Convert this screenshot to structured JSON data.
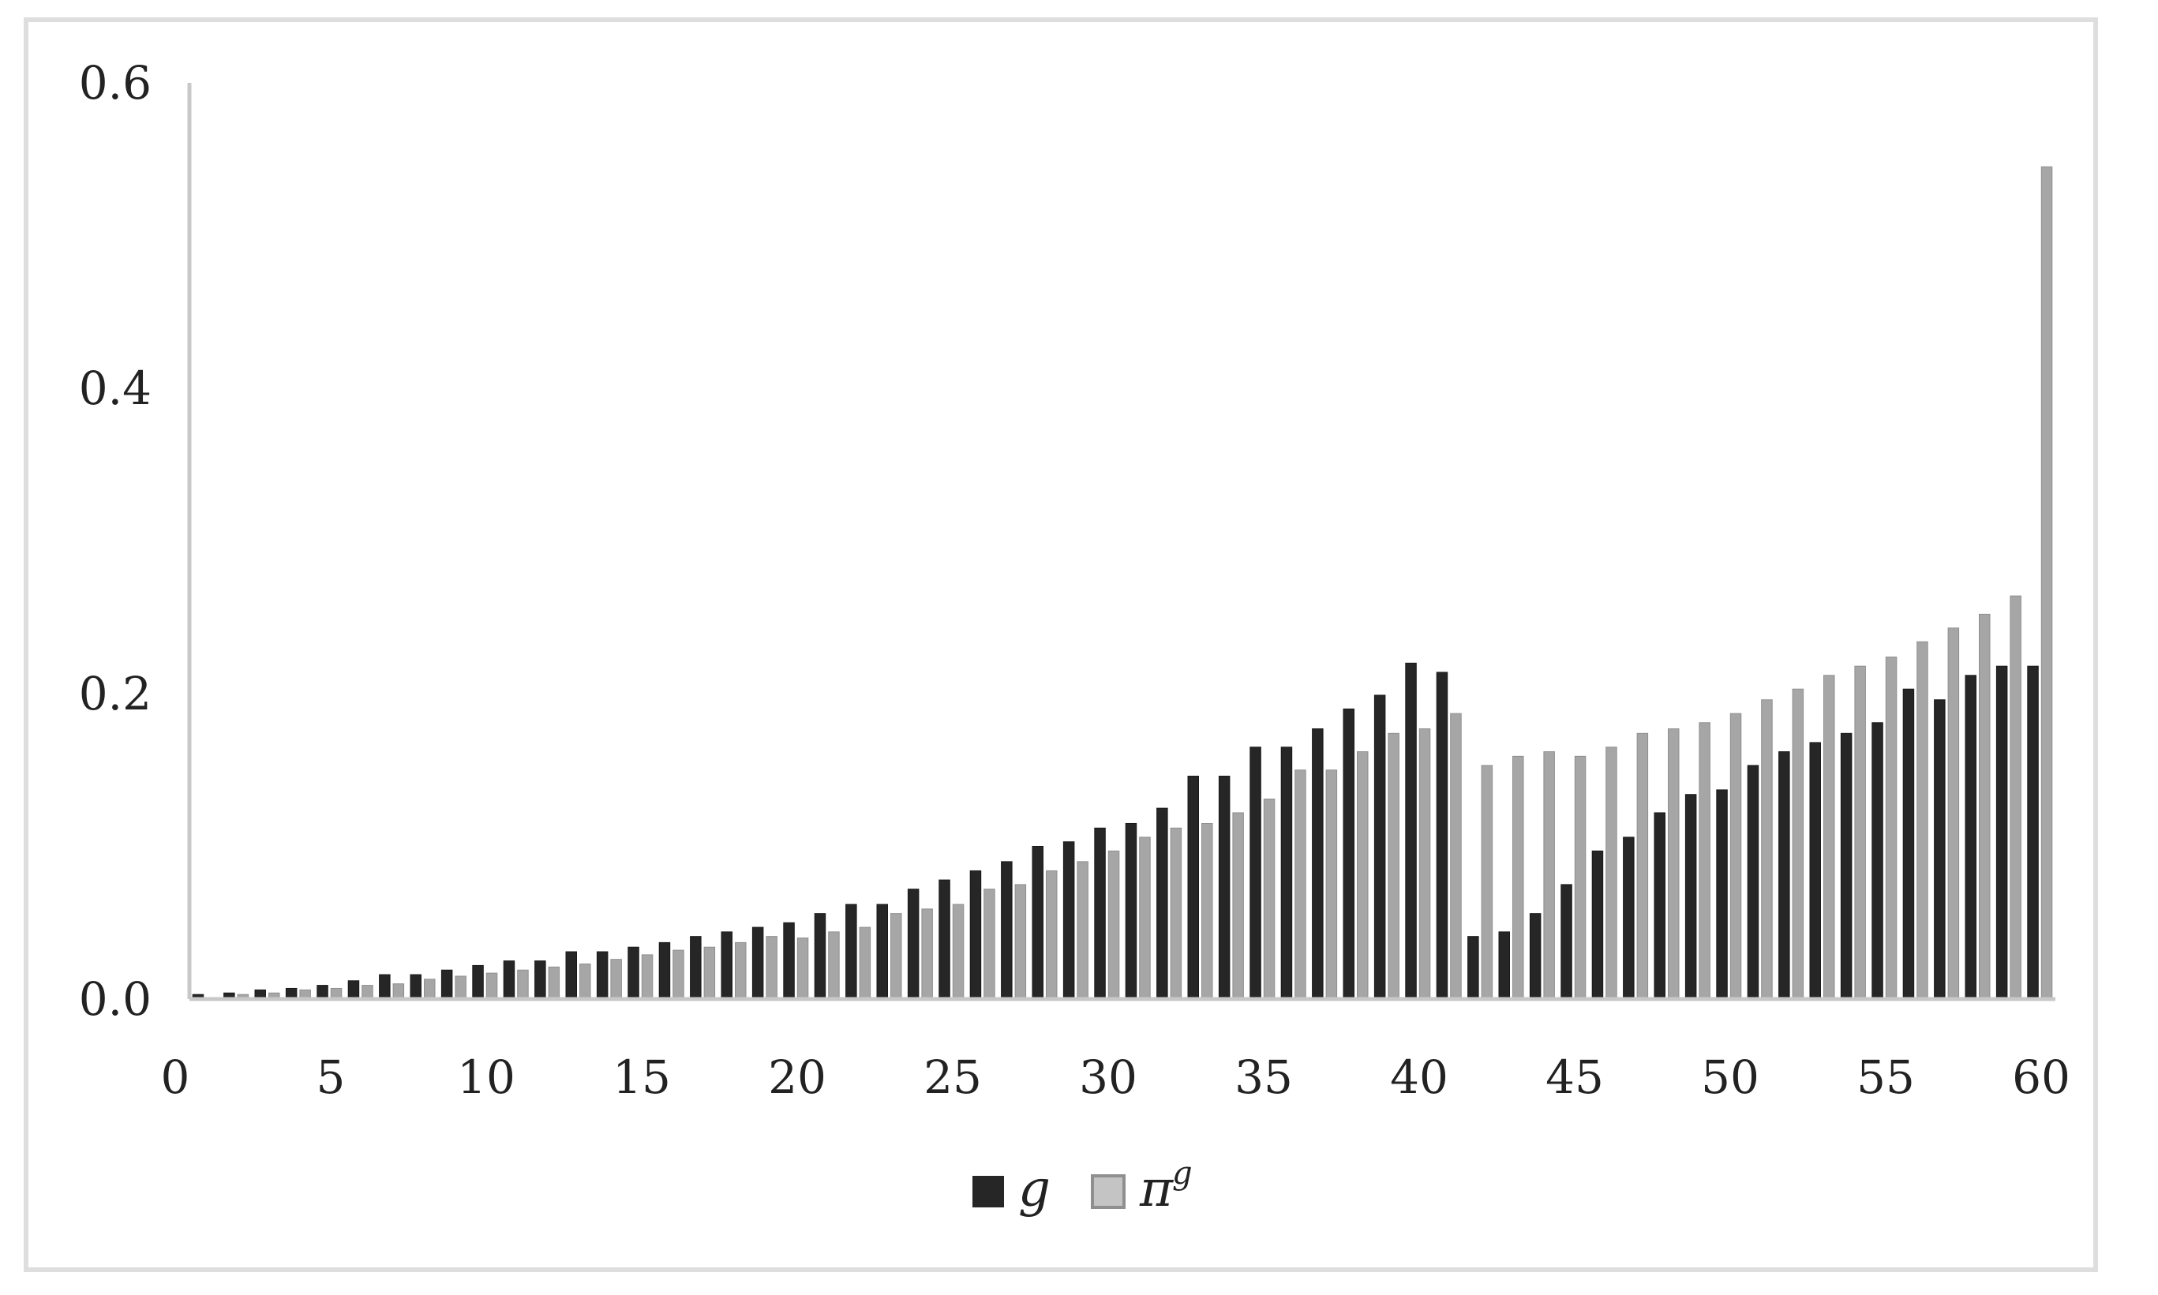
{
  "chart_data": {
    "type": "bar",
    "xlim": [
      0,
      60
    ],
    "ylim": [
      0,
      0.6
    ],
    "x_ticks": [
      "0",
      "5",
      "10",
      "15",
      "20",
      "25",
      "30",
      "35",
      "40",
      "45",
      "50",
      "55",
      "60"
    ],
    "y_ticks": [
      "0.0",
      "0.2",
      "0.4",
      "0.6"
    ],
    "grid": false,
    "legend_position": "bottom-center",
    "x": [
      1,
      2,
      3,
      4,
      5,
      6,
      7,
      8,
      9,
      10,
      11,
      12,
      13,
      14,
      15,
      16,
      17,
      18,
      19,
      20,
      21,
      22,
      23,
      24,
      25,
      26,
      27,
      28,
      29,
      30,
      31,
      32,
      33,
      34,
      35,
      36,
      37,
      38,
      39,
      40,
      41,
      42,
      43,
      44,
      45,
      46,
      47,
      48,
      49,
      50,
      51,
      52,
      53,
      54,
      55,
      56,
      57,
      58,
      59,
      60
    ],
    "series": [
      {
        "name": "g",
        "color": "#262626",
        "values": [
          0.003,
          0.004,
          0.006,
          0.007,
          0.009,
          0.012,
          0.016,
          0.016,
          0.019,
          0.022,
          0.025,
          0.025,
          0.031,
          0.031,
          0.034,
          0.037,
          0.041,
          0.044,
          0.047,
          0.05,
          0.056,
          0.062,
          0.062,
          0.072,
          0.078,
          0.084,
          0.09,
          0.1,
          0.103,
          0.112,
          0.115,
          0.125,
          0.146,
          0.146,
          0.165,
          0.165,
          0.177,
          0.19,
          0.199,
          0.22,
          0.214,
          0.041,
          0.044,
          0.056,
          0.075,
          0.097,
          0.106,
          0.122,
          0.134,
          0.137,
          0.153,
          0.162,
          0.168,
          0.174,
          0.181,
          0.203,
          0.196,
          0.212,
          0.218,
          0.218
        ]
      },
      {
        "name": "π",
        "superscript": "g",
        "color": "#a6a6a6",
        "values": [
          0.001,
          0.003,
          0.004,
          0.006,
          0.007,
          0.009,
          0.01,
          0.013,
          0.015,
          0.017,
          0.019,
          0.021,
          0.023,
          0.026,
          0.029,
          0.032,
          0.034,
          0.037,
          0.041,
          0.04,
          0.044,
          0.047,
          0.056,
          0.059,
          0.062,
          0.072,
          0.075,
          0.084,
          0.09,
          0.097,
          0.106,
          0.112,
          0.115,
          0.122,
          0.131,
          0.15,
          0.15,
          0.162,
          0.174,
          0.177,
          0.187,
          0.153,
          0.159,
          0.162,
          0.159,
          0.165,
          0.174,
          0.177,
          0.181,
          0.187,
          0.196,
          0.203,
          0.212,
          0.218,
          0.224,
          0.234,
          0.243,
          0.252,
          0.264,
          0.545
        ]
      }
    ]
  }
}
